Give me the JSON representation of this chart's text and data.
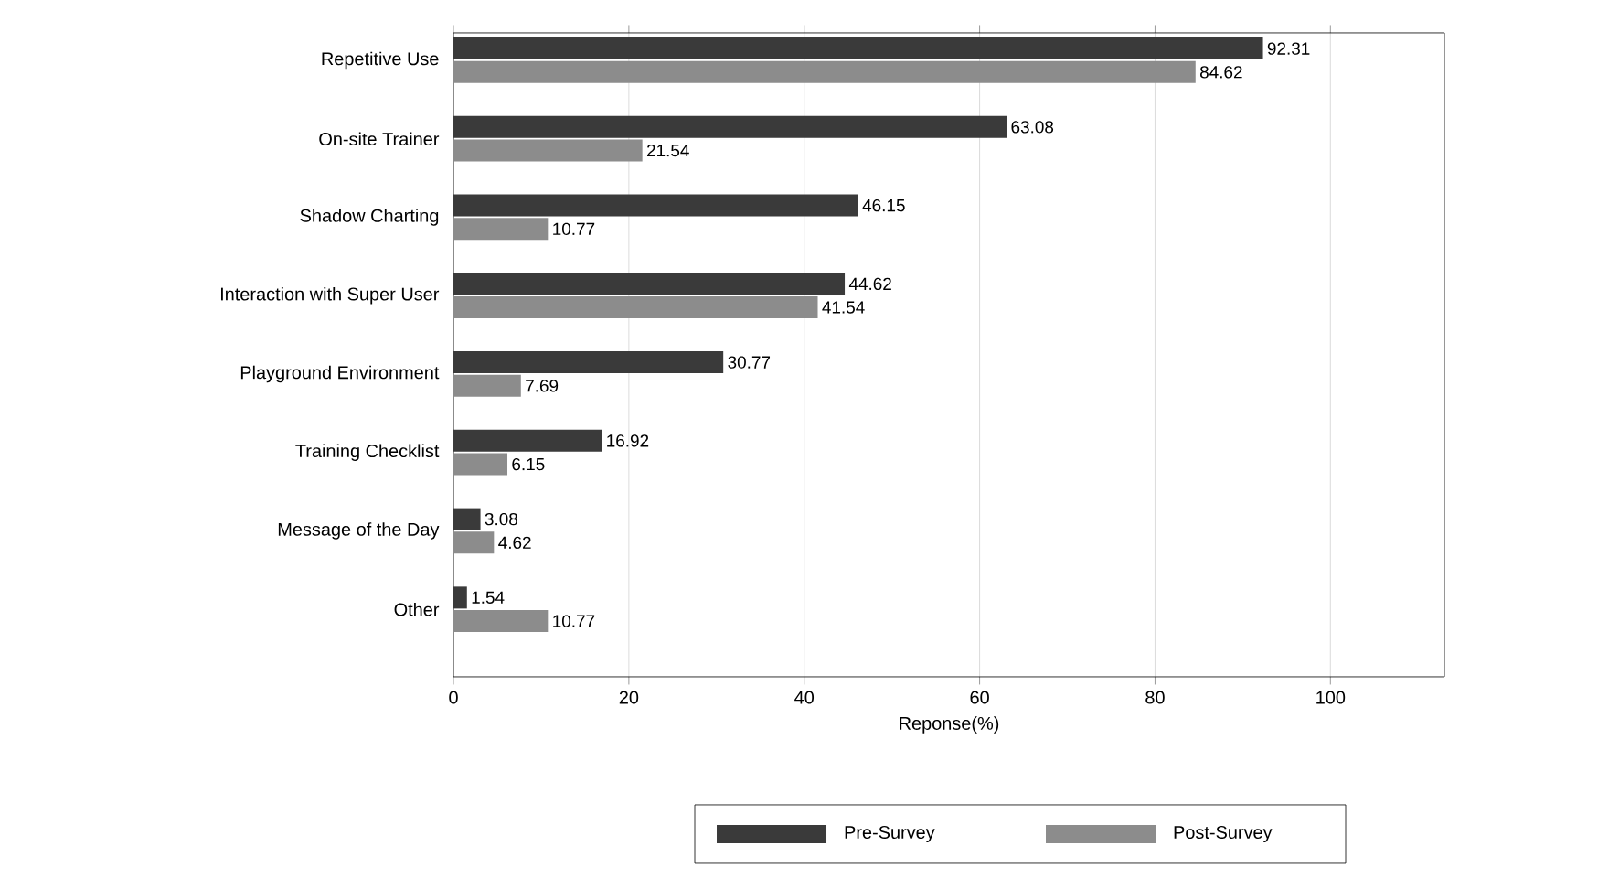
{
  "chart_data": {
    "type": "bar",
    "orientation": "horizontal",
    "xlabel": "Reponse(%)",
    "categories": [
      "Repetitive Use",
      "On-site Trainer",
      "Shadow Charting",
      "Interaction with Super User",
      "Playground Environment",
      "Training Checklist",
      "Message of the Day",
      "Other"
    ],
    "series": [
      {
        "name": "Pre-Survey",
        "color": "#3a3a3a",
        "values": [
          92.31,
          63.08,
          46.15,
          44.62,
          30.77,
          16.92,
          3.08,
          1.54
        ]
      },
      {
        "name": "Post-Survey",
        "color": "#8c8c8c",
        "values": [
          84.62,
          21.54,
          10.77,
          41.54,
          7.69,
          6.15,
          4.62,
          10.77
        ]
      }
    ],
    "xlim": [
      0,
      113
    ],
    "xticks": [
      0,
      20,
      40,
      60,
      80,
      100
    ],
    "grid": "x",
    "legend": "bottom",
    "data_labels": true
  }
}
